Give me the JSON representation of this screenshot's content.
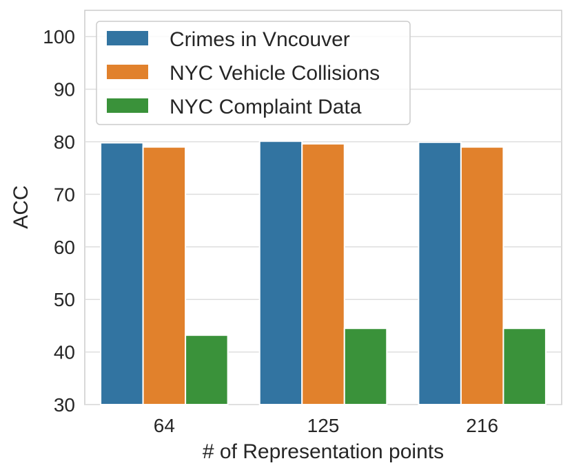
{
  "chart_data": {
    "type": "bar",
    "categories": [
      "64",
      "125",
      "216"
    ],
    "series": [
      {
        "name": "Crimes in Vncouver",
        "values": [
          79.8,
          80.1,
          79.9
        ],
        "color": "#3274a1"
      },
      {
        "name": "NYC Vehicle Collisions",
        "values": [
          79.0,
          79.6,
          79.0
        ],
        "color": "#e1812c"
      },
      {
        "name": "NYC Complaint Data",
        "values": [
          43.2,
          44.5,
          44.5
        ],
        "color": "#3a923a"
      }
    ],
    "xlabel": "# of Representation points",
    "ylabel": "ACC",
    "ylim": [
      30,
      105
    ],
    "yticks": [
      "30",
      "40",
      "50",
      "60",
      "70",
      "80",
      "90",
      "100"
    ],
    "grid": true,
    "legend_position": "top-left"
  }
}
